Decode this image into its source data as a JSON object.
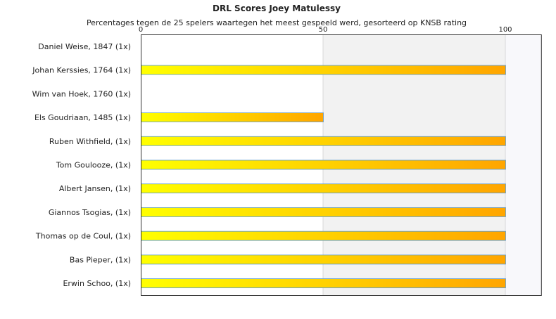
{
  "chart_data": {
    "type": "bar",
    "orientation": "horizontal",
    "title": "DRL Scores Joey Matulessy",
    "subtitle": "Percentages tegen de 25 spelers waartegen het meest gespeeld werd, gesorteerd op KNSB rating",
    "xlabel": "",
    "ylabel": "",
    "xlim": [
      0,
      110
    ],
    "x_ticks": [
      {
        "value": 0,
        "label": "0"
      },
      {
        "value": 50,
        "label": "50"
      },
      {
        "value": 100,
        "label": "100"
      }
    ],
    "grid": true,
    "axis_position": "top",
    "categories": [
      "Daniel Weise, 1847 (1x)",
      "Johan Kerssies, 1764 (1x)",
      "Wim van Hoek, 1760 (1x)",
      "Els Goudriaan, 1485 (1x)",
      "Ruben Withfield,  (1x)",
      "Tom Goulooze,  (1x)",
      "Albert Jansen,  (1x)",
      "Giannos Tsogias,  (1x)",
      "Thomas op de Coul,  (1x)",
      "Bas Pieper,  (1x)",
      "Erwin Schoo,  (1x)"
    ],
    "values": [
      0,
      100,
      0,
      50,
      100,
      100,
      100,
      100,
      100,
      100,
      100
    ],
    "colors": {
      "bar_gradient_start": "#ffff00",
      "bar_gradient_end": "#ffa500",
      "bar_border": "#5b9bd5",
      "band_light": "#f2f2f2",
      "band_lighter": "#f8f8fb",
      "gridline": "#d8d8d8",
      "frame": "#333333"
    }
  }
}
